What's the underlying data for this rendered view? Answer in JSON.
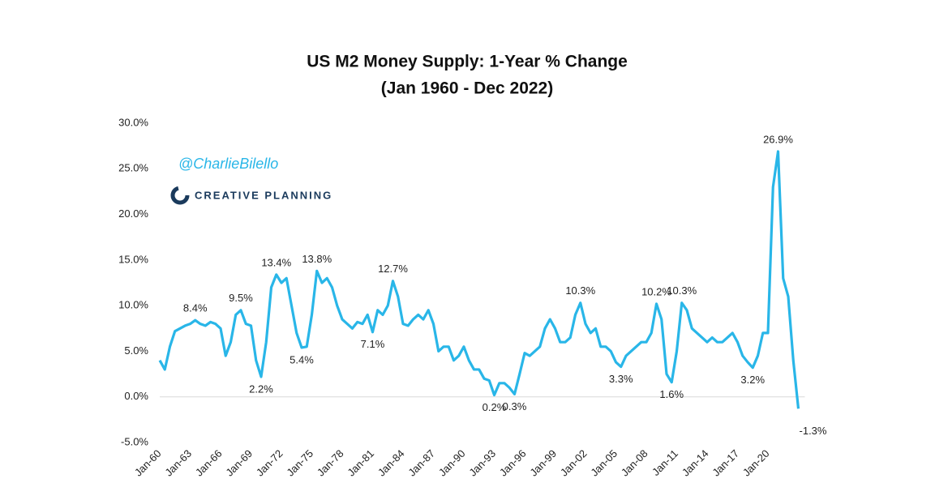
{
  "chart_data": {
    "type": "line",
    "title": "US M2 Money Supply: 1-Year % Change",
    "subtitle": "(Jan 1960 - Dec 2022)",
    "annotations": [
      "@CharlieBilello",
      "CREATIVE PLANNING"
    ],
    "color": "#29b6e8",
    "ylim": [
      -5,
      30
    ],
    "yticks": [
      {
        "value": -5,
        "label": "-5.0%"
      },
      {
        "value": 0,
        "label": "0.0%"
      },
      {
        "value": 5,
        "label": "5.0%"
      },
      {
        "value": 10,
        "label": "10.0%"
      },
      {
        "value": 15,
        "label": "15.0%"
      },
      {
        "value": 20,
        "label": "20.0%"
      },
      {
        "value": 25,
        "label": "25.0%"
      },
      {
        "value": 30,
        "label": "30.0%"
      }
    ],
    "categories": [
      "Jan-60",
      null,
      null,
      null,
      null,
      null,
      "Jan-63",
      null,
      null,
      null,
      null,
      null,
      "Jan-66",
      null,
      null,
      null,
      null,
      null,
      "Jan-69",
      null,
      null,
      null,
      null,
      null,
      "Jan-72",
      null,
      null,
      null,
      null,
      null,
      "Jan-75",
      null,
      null,
      null,
      null,
      null,
      "Jan-78",
      null,
      null,
      null,
      null,
      null,
      "Jan-81",
      null,
      null,
      null,
      null,
      null,
      "Jan-84",
      null,
      null,
      null,
      null,
      null,
      "Jan-87",
      null,
      null,
      null,
      null,
      null,
      "Jan-90",
      null,
      null,
      null,
      null,
      null,
      "Jan-93",
      null,
      null,
      null,
      null,
      null,
      "Jan-96",
      null,
      null,
      null,
      null,
      null,
      "Jan-99",
      null,
      null,
      null,
      null,
      null,
      "Jan-02",
      null,
      null,
      null,
      null,
      null,
      "Jan-05",
      null,
      null,
      null,
      null,
      null,
      "Jan-08",
      null,
      null,
      null,
      null,
      null,
      "Jan-11",
      null,
      null,
      null,
      null,
      null,
      "Jan-14",
      null,
      null,
      null,
      null,
      null,
      "Jan-17",
      null,
      null,
      null,
      null,
      null,
      "Jan-20",
      null,
      null,
      null,
      null,
      null,
      null
    ],
    "values": [
      4.0,
      3.0,
      5.5,
      7.2,
      7.5,
      7.8,
      8.0,
      8.4,
      8.0,
      7.8,
      8.2,
      8.0,
      7.5,
      4.5,
      6.0,
      9.0,
      9.5,
      8.0,
      7.8,
      4.0,
      2.2,
      6.0,
      12.0,
      13.4,
      12.5,
      13.0,
      10.0,
      7.0,
      5.4,
      5.5,
      9.0,
      13.8,
      12.5,
      13.0,
      12.0,
      10.0,
      8.5,
      8.0,
      7.5,
      8.2,
      8.0,
      9.0,
      7.1,
      9.5,
      9.0,
      10.0,
      12.7,
      11.0,
      8.0,
      7.8,
      8.5,
      9.0,
      8.5,
      9.5,
      8.0,
      5.0,
      5.5,
      5.5,
      4.0,
      4.5,
      5.5,
      4.0,
      3.0,
      3.0,
      2.0,
      1.8,
      0.2,
      1.5,
      1.5,
      1.0,
      0.3,
      2.5,
      4.8,
      4.5,
      5.0,
      5.5,
      7.5,
      8.5,
      7.5,
      6.0,
      6.0,
      6.5,
      9.0,
      10.3,
      8.0,
      7.0,
      7.5,
      5.5,
      5.5,
      5.0,
      3.8,
      3.3,
      4.5,
      5.0,
      5.5,
      6.0,
      6.0,
      7.0,
      10.2,
      8.5,
      2.5,
      1.6,
      5.0,
      10.3,
      9.5,
      7.5,
      7.0,
      6.5,
      6.0,
      6.5,
      6.0,
      6.0,
      6.5,
      7.0,
      6.0,
      4.5,
      3.8,
      3.2,
      4.5,
      7.0,
      7.0,
      23.0,
      26.9,
      13.0,
      11.0,
      4.0,
      -1.3
    ],
    "value_labels": [
      null,
      null,
      null,
      null,
      null,
      null,
      null,
      "8.4%",
      null,
      null,
      null,
      null,
      null,
      null,
      null,
      null,
      "9.5%",
      null,
      null,
      null,
      "2.2%",
      null,
      null,
      "13.4%",
      null,
      null,
      null,
      null,
      "5.4%",
      null,
      null,
      "13.8%",
      null,
      null,
      null,
      null,
      null,
      null,
      null,
      null,
      null,
      null,
      "7.1%",
      null,
      null,
      null,
      "12.7%",
      null,
      null,
      null,
      null,
      null,
      null,
      null,
      null,
      null,
      null,
      null,
      null,
      null,
      null,
      null,
      null,
      null,
      null,
      null,
      "0.2%",
      null,
      null,
      null,
      "0.3%",
      null,
      null,
      null,
      null,
      null,
      null,
      null,
      null,
      null,
      null,
      null,
      null,
      "10.3%",
      null,
      null,
      null,
      null,
      null,
      null,
      null,
      "3.3%",
      null,
      null,
      null,
      null,
      null,
      null,
      "10.2%",
      null,
      null,
      "1.6%",
      null,
      "10.3%",
      null,
      null,
      null,
      null,
      null,
      null,
      null,
      null,
      null,
      null,
      null,
      null,
      null,
      "3.2%",
      null,
      null,
      null,
      null,
      "26.9%",
      null,
      null,
      null,
      "-1.3%"
    ]
  }
}
